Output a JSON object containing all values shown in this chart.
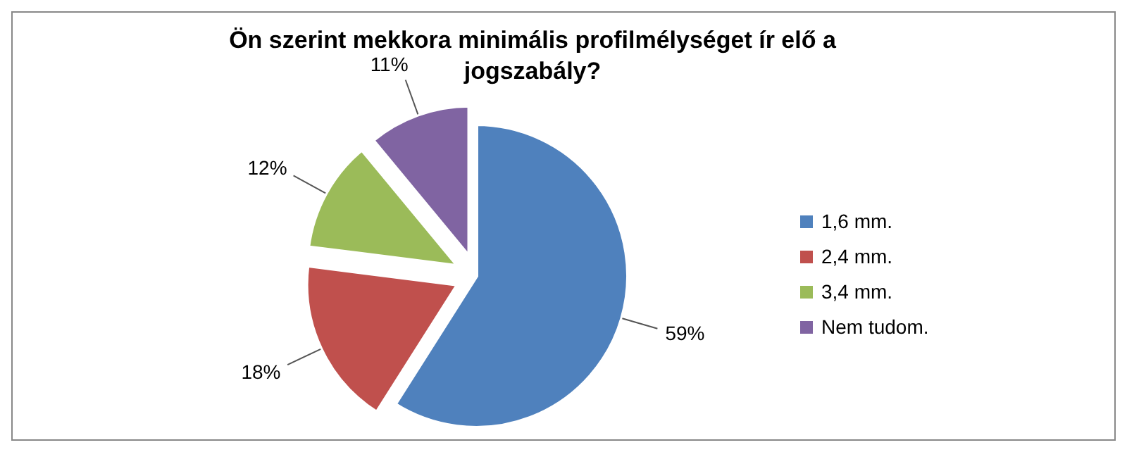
{
  "chart_data": {
    "type": "pie",
    "title": "Ön szerint mekkora minimális profilmélységet ír elő a jogszabály?",
    "categories": [
      "1,6 mm.",
      "2,4 mm.",
      "3,4 mm.",
      "Nem tudom."
    ],
    "values": [
      59,
      18,
      12,
      11
    ],
    "colors": [
      "#4f81bd",
      "#c0504d",
      "#9bbb59",
      "#8064a2"
    ],
    "value_labels": [
      "59%",
      "18%",
      "12%",
      "11%"
    ],
    "data_labels": true,
    "legend": "right"
  }
}
